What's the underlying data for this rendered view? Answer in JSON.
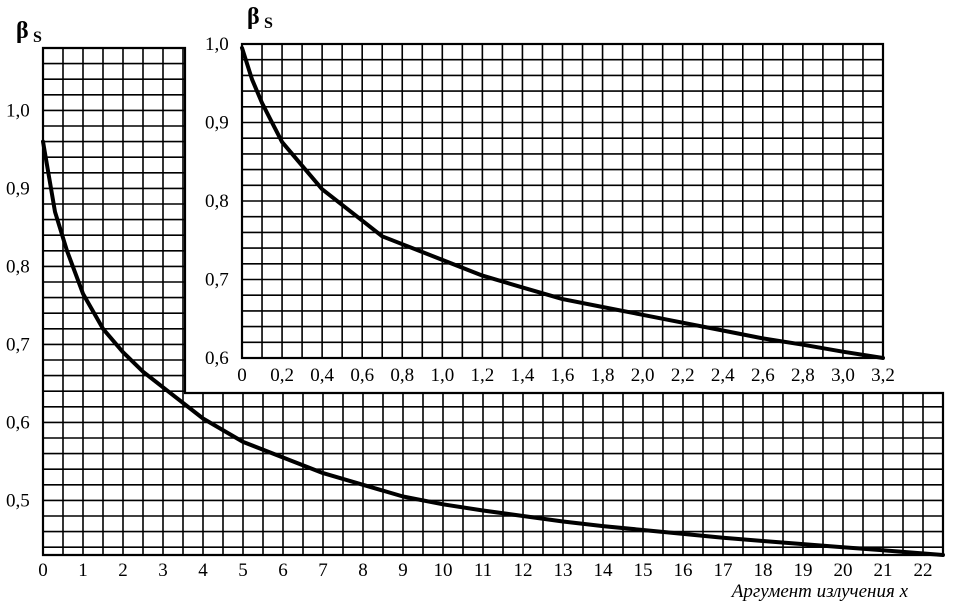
{
  "chart_data": [
    {
      "id": "main",
      "type": "line",
      "xlabel": "Аргумент излучения x",
      "ylabel": "β",
      "ylabel_subscript": "S",
      "xlim": [
        0,
        22.5
      ],
      "ylim": [
        0.43,
        1.08
      ],
      "x_ticks": [
        0,
        1,
        2,
        3,
        4,
        5,
        6,
        7,
        8,
        9,
        10,
        11,
        12,
        13,
        14,
        15,
        16,
        17,
        18,
        19,
        20,
        21,
        22
      ],
      "x_tick_labels": [
        "0",
        "1",
        "2",
        "3",
        "4",
        "5",
        "6",
        "7",
        "8",
        "9",
        "10",
        "11",
        "12",
        "13",
        "14",
        "15",
        "16",
        "17",
        "18",
        "19",
        "20",
        "21",
        "22"
      ],
      "y_ticks": [
        0.5,
        0.6,
        0.7,
        0.8,
        0.9,
        1.0
      ],
      "y_tick_labels": [
        "0,5",
        "0,6",
        "0,7",
        "0,8",
        "0,9",
        "1,0"
      ],
      "grid": true,
      "legend": "none",
      "series": [
        {
          "x": [
            0,
            0.3,
            0.6,
            1.0,
            1.5,
            2,
            2.5,
            3,
            4,
            5,
            6,
            7,
            8,
            9,
            10,
            11,
            12,
            13,
            14,
            15,
            16,
            17,
            18,
            19,
            20,
            21,
            22.5
          ],
          "y": [
            0.96,
            0.87,
            0.82,
            0.765,
            0.72,
            0.69,
            0.665,
            0.645,
            0.605,
            0.575,
            0.555,
            0.535,
            0.52,
            0.505,
            0.495,
            0.487,
            0.48,
            0.473,
            0.467,
            0.462,
            0.457,
            0.452,
            0.448,
            0.444,
            0.44,
            0.436,
            0.43
          ]
        }
      ]
    },
    {
      "id": "inset",
      "type": "line",
      "ylabel": "β",
      "ylabel_subscript": "S",
      "xlim": [
        0,
        3.2
      ],
      "ylim": [
        0.6,
        1.0
      ],
      "x_ticks": [
        0,
        0.2,
        0.4,
        0.6,
        0.8,
        1.0,
        1.2,
        1.4,
        1.6,
        1.8,
        2.0,
        2.2,
        2.4,
        2.6,
        2.8,
        3.0,
        3.2
      ],
      "x_tick_labels": [
        "0",
        "0,2",
        "0,4",
        "0,6",
        "0,8",
        "1,0",
        "1,2",
        "1,4",
        "1,6",
        "1,8",
        "2,0",
        "2,2",
        "2,4",
        "2,6",
        "2,8",
        "3,0",
        "3,2"
      ],
      "y_ticks": [
        0.6,
        0.7,
        0.8,
        0.9,
        1.0
      ],
      "y_tick_labels": [
        "0,6",
        "0,7",
        "0,8",
        "0,9",
        "1,0"
      ],
      "grid": true,
      "legend": "none",
      "series": [
        {
          "x": [
            0,
            0.05,
            0.1,
            0.15,
            0.2,
            0.3,
            0.4,
            0.5,
            0.6,
            0.7,
            0.8,
            0.9,
            1.0,
            1.2,
            1.4,
            1.6,
            1.8,
            2.0,
            2.2,
            2.4,
            2.6,
            2.8,
            3.0,
            3.2
          ],
          "y": [
            0.995,
            0.955,
            0.925,
            0.9,
            0.875,
            0.845,
            0.815,
            0.795,
            0.775,
            0.755,
            0.745,
            0.735,
            0.725,
            0.705,
            0.69,
            0.675,
            0.665,
            0.655,
            0.645,
            0.635,
            0.625,
            0.617,
            0.608,
            0.6
          ]
        }
      ]
    }
  ]
}
